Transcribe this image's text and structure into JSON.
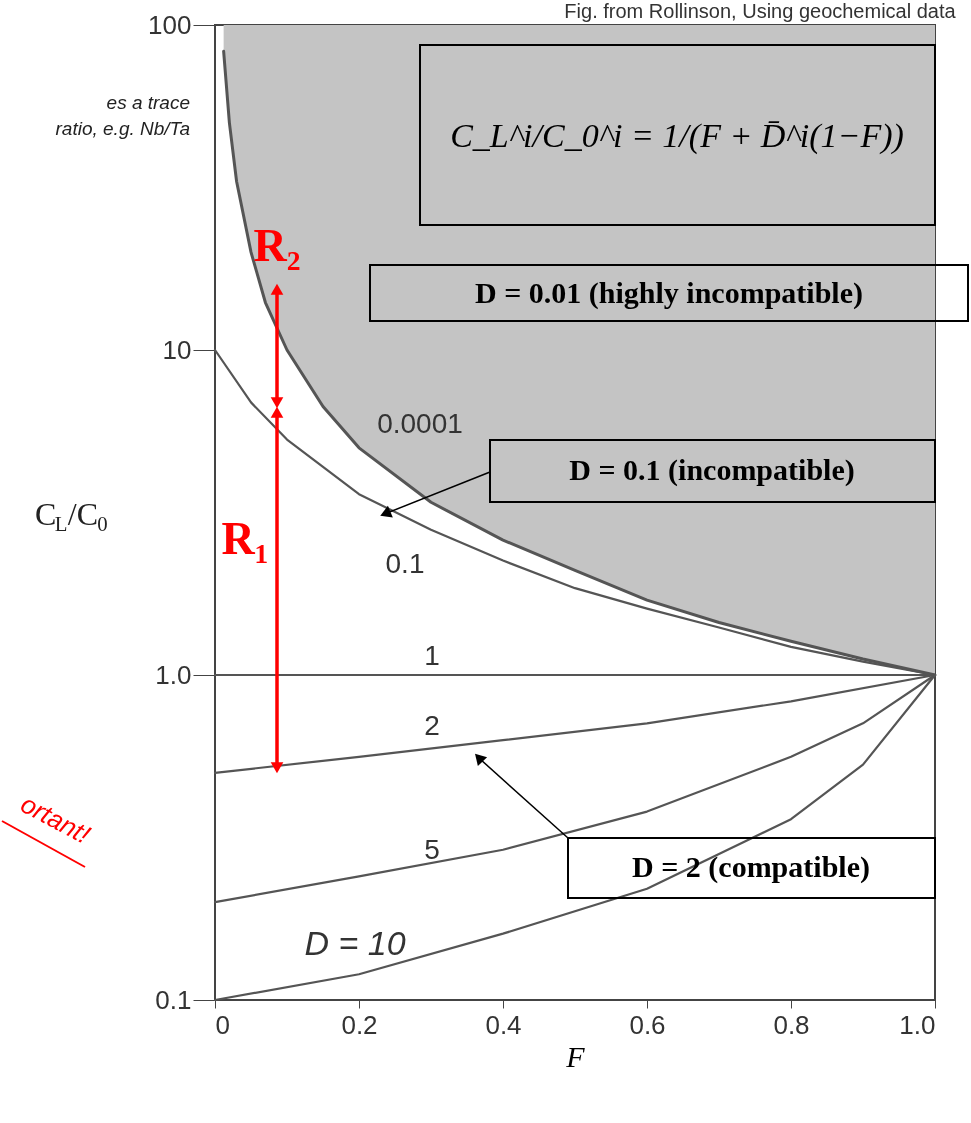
{
  "chart_data": {
    "type": "line",
    "title": "Fig. from Rollinson, Using geochemical data",
    "xlabel": "F",
    "ylabel": "C$_{L}$/C$_{0}$",
    "log": "y",
    "grid": false,
    "legend": false,
    "marker": "none",
    "line_style": "solid",
    "xlim": [
      0,
      1
    ],
    "xticks": [
      0,
      0.2,
      0.4,
      0.6,
      0.8,
      {
        "value": 1,
        "label": "1.0"
      }
    ],
    "ylim": [
      0.1,
      100
    ],
    "yticks": [
      0.1,
      {
        "value": 1,
        "label": "1.0"
      },
      10,
      100
    ],
    "series": [
      {
        "name": "0.0001",
        "color": "#555555",
        "x": [
          0.012,
          0.02,
          0.03,
          0.05,
          0.07,
          0.1,
          0.15,
          0.2,
          0.3,
          0.4,
          0.5,
          0.6,
          0.7,
          0.8,
          0.9,
          1
        ],
        "values": [
          83,
          50,
          33,
          20,
          14,
          10,
          6.7,
          5,
          3.4,
          2.6,
          2.1,
          1.7,
          1.45,
          1.27,
          1.12,
          1
        ]
      },
      {
        "name": "0.1",
        "color": "#555555",
        "x": [
          0,
          0.05,
          0.1,
          0.2,
          0.3,
          0.4,
          0.5,
          0.6,
          0.7,
          0.8,
          0.9,
          1
        ],
        "values": [
          10,
          6.9,
          5.3,
          3.6,
          2.8,
          2.25,
          1.85,
          1.6,
          1.4,
          1.22,
          1.1,
          1
        ]
      },
      {
        "name": "1",
        "color": "#555555",
        "x": [
          0,
          1
        ],
        "values": [
          1,
          1
        ]
      },
      {
        "name": "2",
        "color": "#555555",
        "x": [
          0,
          0.2,
          0.4,
          0.6,
          0.8,
          1
        ],
        "values": [
          0.5,
          0.56,
          0.63,
          0.71,
          0.83,
          1
        ]
      },
      {
        "name": "5",
        "color": "#555555",
        "x": [
          0,
          0.2,
          0.4,
          0.6,
          0.8,
          0.9,
          1
        ],
        "values": [
          0.2,
          0.24,
          0.29,
          0.38,
          0.56,
          0.71,
          1
        ]
      },
      {
        "name": "D = 10",
        "color": "#555555",
        "x": [
          0,
          0.2,
          0.4,
          0.6,
          0.8,
          0.9,
          1
        ],
        "values": [
          0.1,
          0.12,
          0.16,
          0.22,
          0.36,
          0.53,
          1
        ]
      }
    ],
    "annotations": [
      "es a trace\nratio, e.g. Nb/Ta",
      "ortant!",
      "C_L^i/C_0^i = 1/(F + D̄^i(1−F))",
      "D = 0.01 (highly incompatible)",
      "D = 0.1 (incompatible)",
      "D = 2 (compatible)",
      "R₂",
      "R₁"
    ]
  }
}
